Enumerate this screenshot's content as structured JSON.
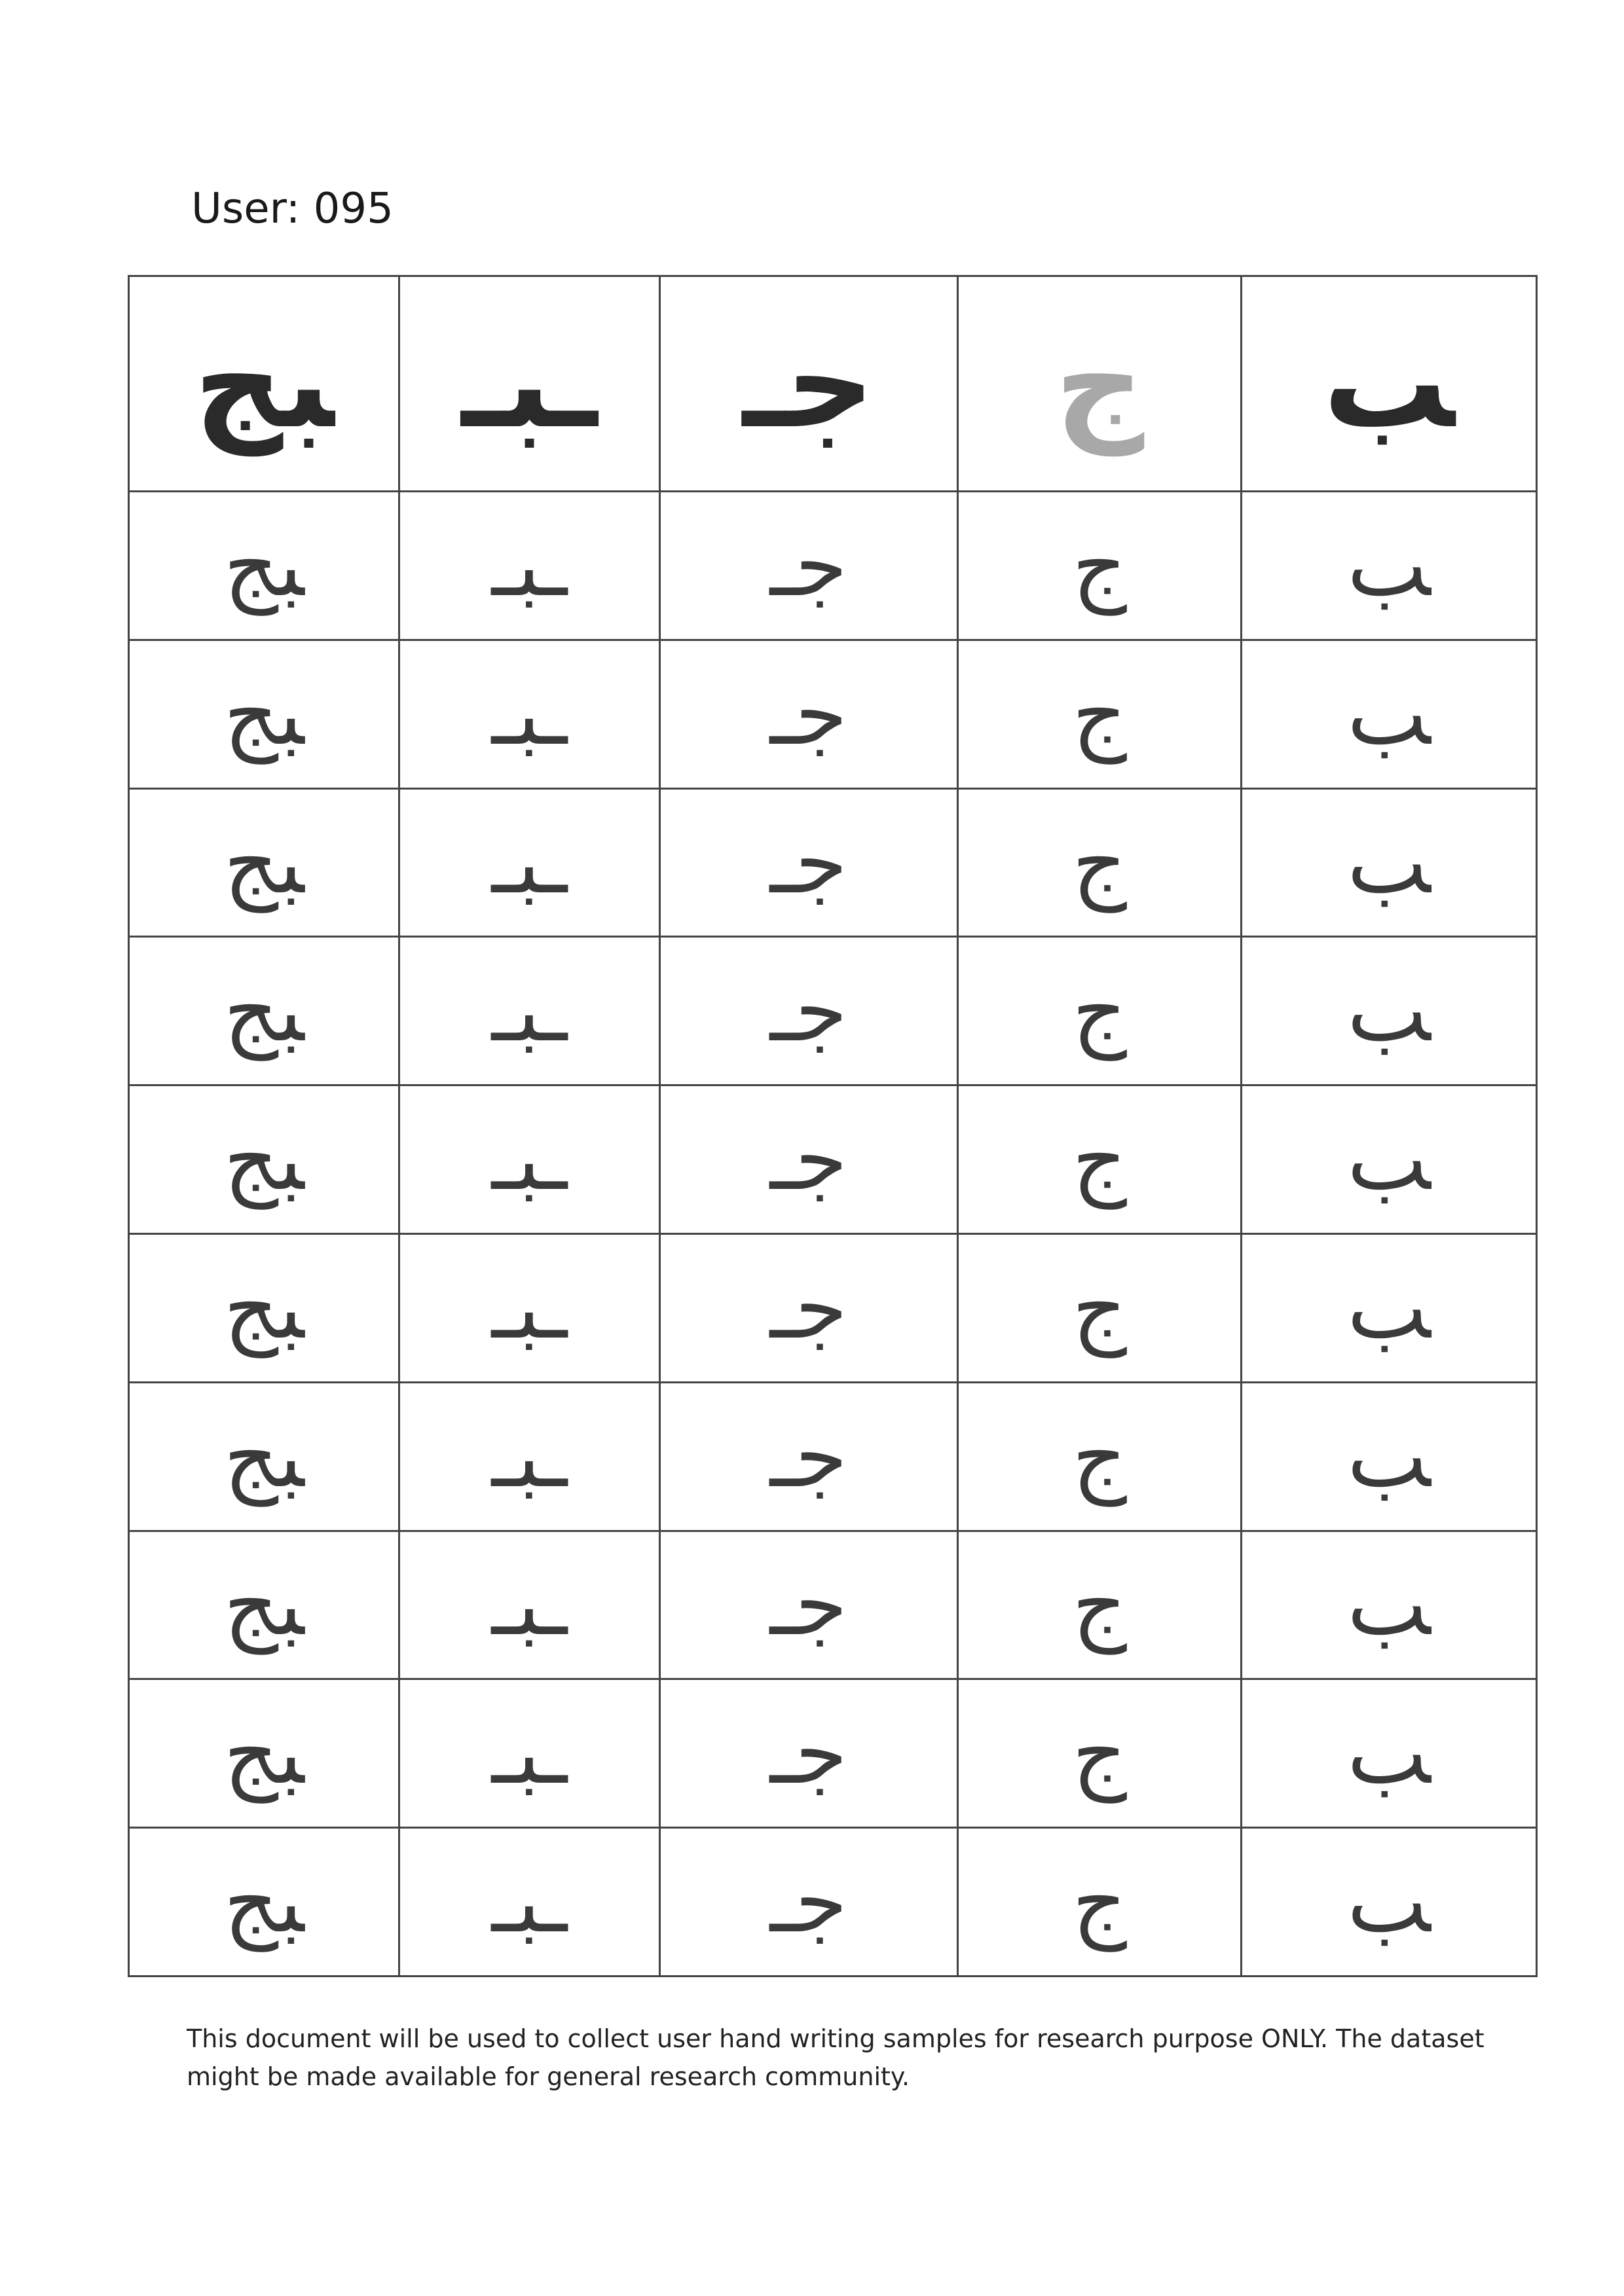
{
  "header": {
    "user_label": "User: 095"
  },
  "grid": {
    "columns": [
      {
        "printed": "ﺒﺞ",
        "handwritten": "ﺒﺞ"
      },
      {
        "printed": "ـﺒـ",
        "handwritten": "ـﺒـ"
      },
      {
        "printed": "ﺟـ",
        "handwritten": "ﺟـ"
      },
      {
        "printed": "ج",
        "handwritten": "ج"
      },
      {
        "printed": "ﺐ",
        "handwritten": "ﺐ"
      }
    ],
    "reference_style": [
      "dark",
      "dark",
      "dark",
      "faded",
      "dark"
    ],
    "sample_rows": 10
  },
  "footer": {
    "notice": "This document will be used to collect user hand writing samples for research purpose ONLY. The dataset might be made available for general research community."
  }
}
